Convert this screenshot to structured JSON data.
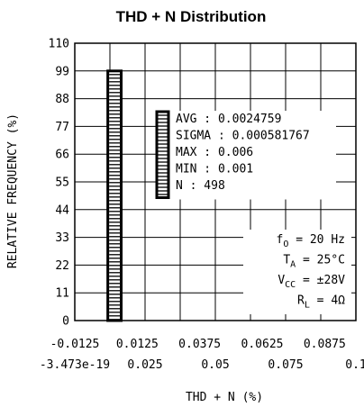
{
  "chart_data": {
    "type": "bar",
    "title": "THD + N Distribution",
    "xlabel": "THD + N (%)",
    "ylabel": "RELATIVE FREQUENCY (%)",
    "xlim": [
      -0.0125,
      0.1
    ],
    "ylim": [
      0,
      110
    ],
    "x_ticks_top": [
      "-0.0125",
      "0.0125",
      "0.0375",
      "0.0625",
      "0.0875"
    ],
    "x_ticks_bottom": [
      "-3.473e-19",
      "0.025",
      "0.05",
      "0.075",
      "0.1"
    ],
    "y_ticks": [
      "0",
      "11",
      "22",
      "33",
      "44",
      "55",
      "66",
      "77",
      "88",
      "99",
      "110"
    ],
    "grid": true,
    "bars": [
      {
        "x_start": 0,
        "x_end": 0.005,
        "value": 99
      }
    ],
    "stats": [
      "AVG : 0.0024759",
      "SIGMA : 0.000581767",
      "MAX : 0.006",
      "MIN : 0.001",
      "N : 498"
    ],
    "conditions": [
      {
        "base": "f",
        "sub": "O",
        "value": " = 20 Hz"
      },
      {
        "base": "T",
        "sub": "A",
        "value": " = 25°C"
      },
      {
        "base": "V",
        "sub": "CC",
        "value": " = ±28V"
      },
      {
        "base": "R",
        "sub": "L",
        "value": " = 4Ω"
      }
    ]
  }
}
